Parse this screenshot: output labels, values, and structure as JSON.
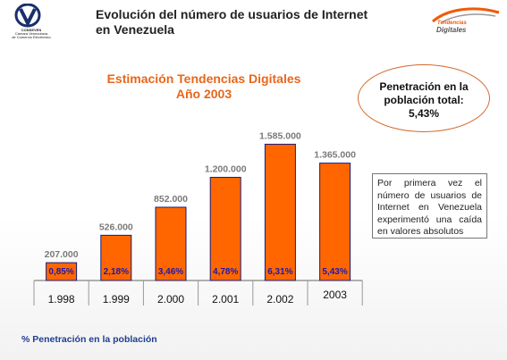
{
  "header": {
    "title_line1": "Evolución del número de usuarios de Internet",
    "title_line2": "en Venezuela",
    "left_logo": {
      "line1": "CONSEVEN",
      "line2": "Cámara Venezolana",
      "line3": "de Comercio Electrónico"
    },
    "right_logo": {
      "line1": "Tendencias",
      "line2": "Digitales"
    }
  },
  "chart_data": {
    "type": "bar",
    "title": "Estimación Tendencias Digitales",
    "subtitle": "Año 2003",
    "categories": [
      "1.998",
      "1.999",
      "2.000",
      "2.001",
      "2.002",
      "2003"
    ],
    "series": [
      {
        "values": [
          207000,
          526000,
          852000,
          1200000,
          1585000,
          1365000
        ]
      }
    ],
    "data_labels": [
      "207.000",
      "526.000",
      "852.000",
      "1.200.000",
      "1.585.000",
      "1.365.000"
    ],
    "penetration_labels": [
      "0,85%",
      "2,18%",
      "3,46%",
      "4,78%",
      "6,31%",
      "5,43%"
    ],
    "ylim": [
      0,
      1600000
    ],
    "grid": false,
    "legend": "none",
    "colors": {
      "bar": "#ff6600",
      "bar_border": "#1a1a7a",
      "penetration_text": "#1a1ab0"
    }
  },
  "callout": {
    "line1": "Penetración en la",
    "line2": "población total:",
    "value": "5,43%"
  },
  "note": "Por primera vez el número de usuarios de Internet en Venezuela experimentó una caída en valores absolutos",
  "footer": "% Penetración en la población",
  "colors": {
    "title_orange": "#e8661a",
    "footer_blue": "#1f3e8f",
    "callout_border": "#d26a2c"
  }
}
